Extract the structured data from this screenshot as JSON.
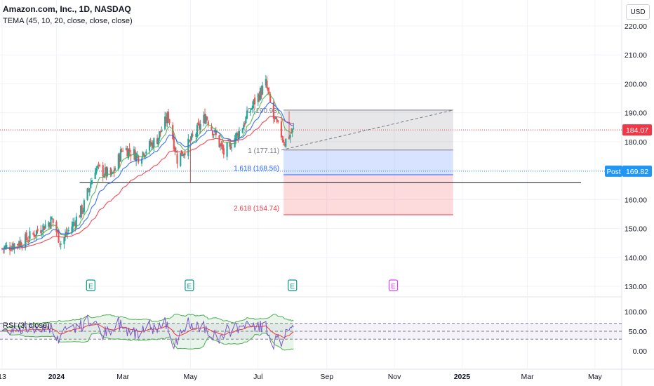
{
  "header": {
    "title": "Amazon.com, Inc., 1D, NASDAQ",
    "indicator": "TEMA (45, 10, 20, close, close, close)",
    "currency": "USD"
  },
  "rsi_label": "RSI (3, close)",
  "colors": {
    "up": "#26a69a",
    "down": "#ef5350",
    "tema_fast": "#2962ff",
    "tema_mid": "#4caf50",
    "tema_slow": "#f23645",
    "rsi_line": "#7e57c2",
    "fib_blue": "#2962ff",
    "fib_red": "#f23645",
    "post_badge": "#2196f3",
    "last_badge": "#f23645"
  },
  "chart_data": [
    {
      "type": "candlestick",
      "title": "Amazon.com, Inc., 1D, NASDAQ",
      "y_axis": {
        "range": [
          128,
          226
        ],
        "ticks": [
          "130.00",
          "140.00",
          "150.00",
          "160.00",
          "170.00",
          "180.00",
          "190.00",
          "200.00",
          "210.00",
          "220.00"
        ]
      },
      "x_axis": {
        "ticks": [
          "13",
          "2024",
          "Mar",
          "May",
          "Jul",
          "Sep",
          "Nov",
          "2025",
          "Mar",
          "May"
        ]
      },
      "price_anchors": [
        {
          "date": "2023-11-13",
          "close": 143
        },
        {
          "date": "2023-12-04",
          "close": 146
        },
        {
          "date": "2023-12-28",
          "close": 153
        },
        {
          "date": "2024-01-05",
          "close": 145
        },
        {
          "date": "2024-01-25",
          "close": 157
        },
        {
          "date": "2024-02-05",
          "close": 171
        },
        {
          "date": "2024-02-20",
          "close": 168
        },
        {
          "date": "2024-03-01",
          "close": 178
        },
        {
          "date": "2024-03-15",
          "close": 175
        },
        {
          "date": "2024-04-01",
          "close": 181
        },
        {
          "date": "2024-04-11",
          "close": 189
        },
        {
          "date": "2024-04-19",
          "close": 174
        },
        {
          "date": "2024-05-01",
          "close": 180
        },
        {
          "date": "2024-05-15",
          "close": 189
        },
        {
          "date": "2024-05-31",
          "close": 176
        },
        {
          "date": "2024-06-15",
          "close": 184
        },
        {
          "date": "2024-06-28",
          "close": 194
        },
        {
          "date": "2024-07-08",
          "close": 200
        },
        {
          "date": "2024-07-15",
          "close": 188
        },
        {
          "date": "2024-07-25",
          "close": 180
        },
        {
          "date": "2024-08-02",
          "close": 184
        }
      ],
      "last_price": "184.07",
      "post_price": "169.82",
      "post_label": "Post",
      "earnings": [
        {
          "date": "2024-02-01",
          "label": "E"
        },
        {
          "date": "2024-04-30",
          "label": "E"
        },
        {
          "date": "2024-08-01",
          "label": "E"
        },
        {
          "date": "2024-10-31",
          "label": "E"
        }
      ],
      "fib": [
        {
          "label": "0 (190.93)",
          "value": 190.93
        },
        {
          "label": "1 (177.11)",
          "value": 177.11
        },
        {
          "label": "1.618 (168.56)",
          "value": 168.56
        },
        {
          "label": "2.618 (154.74)",
          "value": 154.74
        }
      ],
      "support_level": 165.8,
      "series": [
        {
          "name": "TEMA (45, 10, 20, close, close, close)",
          "kind": "overlay"
        }
      ]
    },
    {
      "type": "line",
      "title": "RSI (3, close)",
      "y_axis": {
        "ticks": [
          "100.00",
          "50.00",
          "0.00"
        ]
      },
      "bands": [
        70,
        50,
        30
      ],
      "series": [
        {
          "kind": "rsi",
          "base": 55
        }
      ]
    }
  ]
}
